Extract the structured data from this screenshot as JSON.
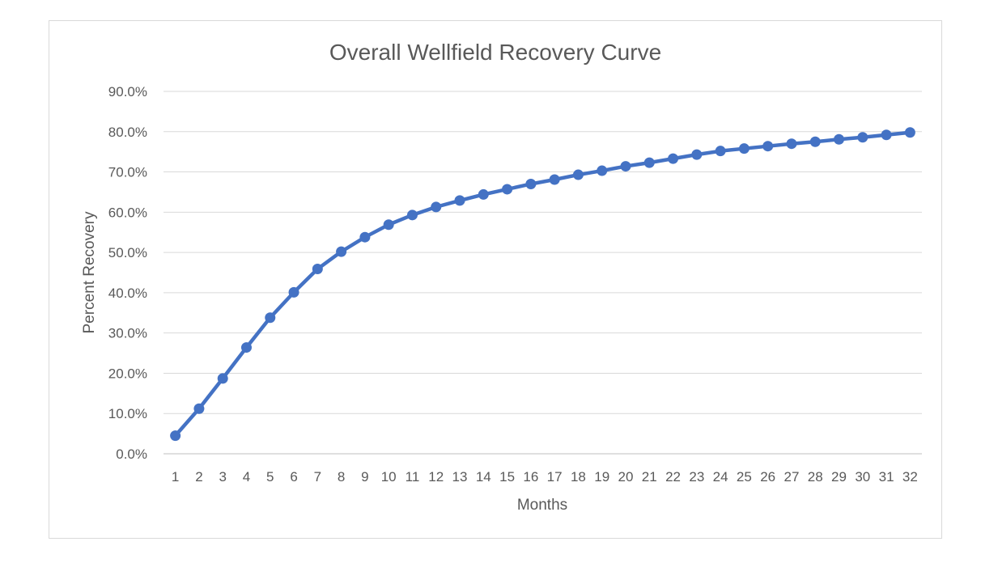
{
  "chart_data": {
    "type": "line",
    "title": "Overall Wellfield Recovery Curve",
    "xlabel": "Months",
    "ylabel": "Percent Recovery",
    "ylim": [
      0,
      0.9
    ],
    "y_ticks": [
      "0.0%",
      "10.0%",
      "20.0%",
      "30.0%",
      "40.0%",
      "50.0%",
      "60.0%",
      "70.0%",
      "80.0%",
      "90.0%"
    ],
    "x": [
      "1",
      "2",
      "3",
      "4",
      "5",
      "6",
      "7",
      "8",
      "9",
      "10",
      "11",
      "12",
      "13",
      "14",
      "15",
      "16",
      "17",
      "18",
      "19",
      "20",
      "21",
      "22",
      "23",
      "24",
      "25",
      "26",
      "27",
      "28",
      "29",
      "30",
      "31",
      "32"
    ],
    "series": [
      {
        "values": [
          0.045,
          0.112,
          0.187,
          0.264,
          0.338,
          0.401,
          0.459,
          0.502,
          0.538,
          0.569,
          0.593,
          0.613,
          0.629,
          0.644,
          0.657,
          0.67,
          0.681,
          0.693,
          0.703,
          0.714,
          0.723,
          0.733,
          0.743,
          0.752,
          0.758,
          0.764,
          0.77,
          0.775,
          0.781,
          0.786,
          0.792,
          0.798
        ],
        "color": "#4472c4"
      }
    ],
    "grid": true,
    "legend": "none"
  }
}
